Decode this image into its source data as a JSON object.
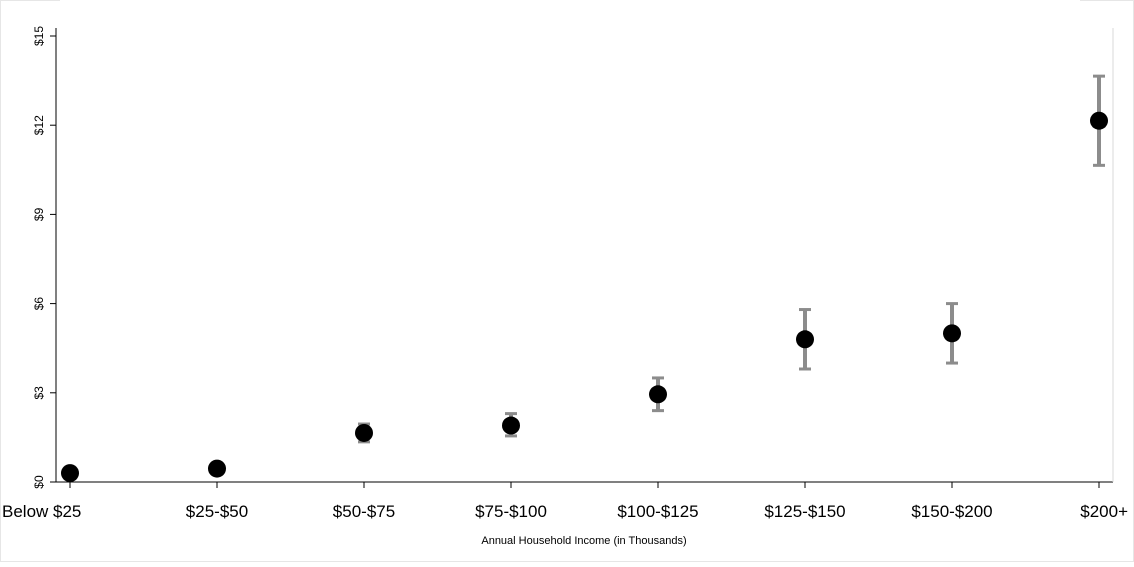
{
  "chart_data": {
    "type": "scatter",
    "title": "",
    "xlabel": "Annual Household Income (in Thousands)",
    "ylabel": "",
    "categories": [
      "Below $25",
      "$25-$50",
      "$50-$75",
      "$75-$100",
      "$100-$125",
      "$125-$150",
      "$150-$200",
      "$200+"
    ],
    "series": [
      {
        "values": [
          0.3,
          0.45,
          1.65,
          1.9,
          2.95,
          4.8,
          5.0,
          12.15
        ],
        "ci_lower": [
          0.3,
          0.45,
          1.35,
          1.55,
          2.4,
          3.8,
          4.0,
          10.65
        ],
        "ci_upper": [
          0.3,
          0.45,
          1.95,
          2.3,
          3.5,
          5.8,
          6.0,
          13.65
        ]
      }
    ],
    "yticks": [
      0,
      3,
      6,
      9,
      12,
      15
    ],
    "ytick_labels": [
      "$0",
      "$3",
      "$6",
      "$9",
      "$12",
      "$15"
    ],
    "ylim": [
      0,
      15
    ],
    "grid": false,
    "legend": "none",
    "colors": {
      "point": "#000000",
      "error_bar": "#8c8c8c",
      "axis": "#000000",
      "background": "#ffffff",
      "frame": "#e6e6e6"
    }
  }
}
